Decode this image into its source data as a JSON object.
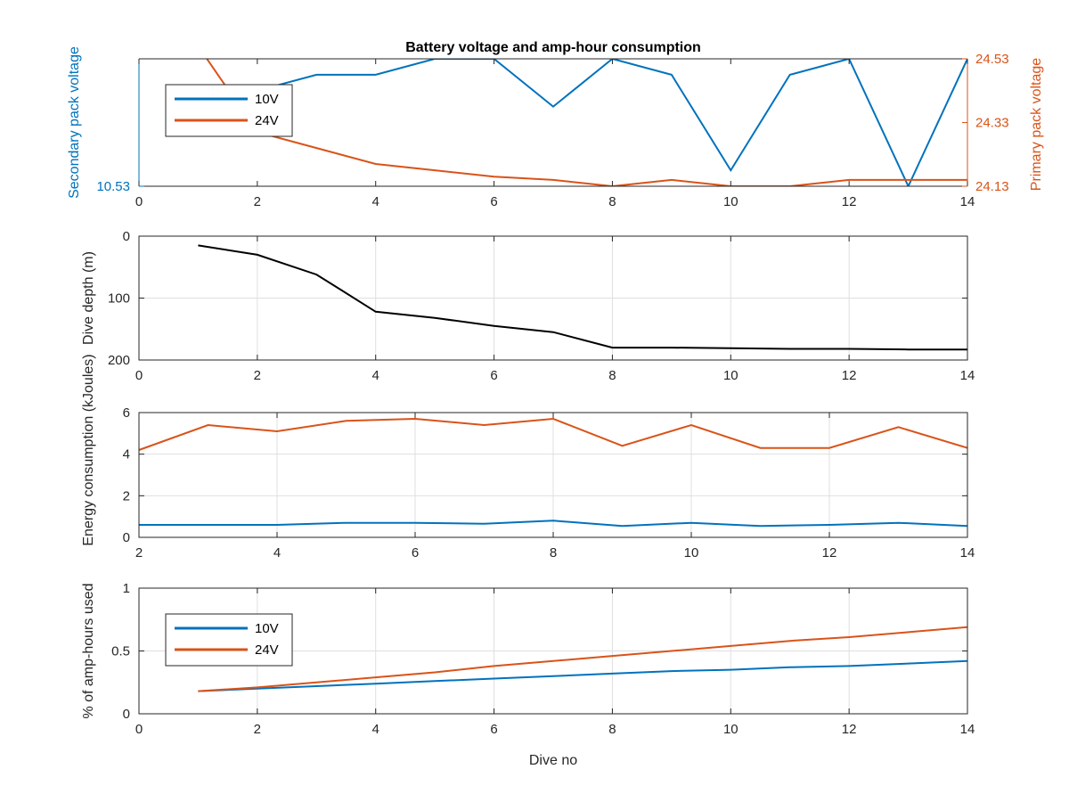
{
  "figure": {
    "title": "Battery voltage and amp-hour consumption"
  },
  "colors": {
    "blue": "#0072BD",
    "orange": "#D95319",
    "black": "#000000",
    "grid": "#dfdfdf",
    "axis": "#262626"
  },
  "chart_data": [
    {
      "id": "voltage",
      "type": "line",
      "title": "Battery voltage and amp-hour consumption",
      "xlabel": "",
      "ylabel_left": "Secondary pack voltage",
      "ylabel_right": "Primary pack voltage",
      "xlim": [
        0,
        14
      ],
      "xticks": [
        0,
        2,
        4,
        6,
        8,
        10,
        12,
        14
      ],
      "ylim_left": [
        10.53,
        10.61
      ],
      "yticks_left": [
        10.53
      ],
      "ylim_right": [
        24.13,
        24.53
      ],
      "yticks_right": [
        24.13,
        24.33,
        24.53
      ],
      "grid": false,
      "legend": "top-left",
      "series": [
        {
          "name": "10V",
          "axis": "left",
          "color": "#0072BD",
          "x": [
            1,
            2,
            3,
            4,
            5,
            6,
            7,
            8,
            9,
            10,
            11,
            12,
            13,
            14
          ],
          "values": [
            10.58,
            10.59,
            10.6,
            10.6,
            10.61,
            10.61,
            10.58,
            10.61,
            10.6,
            10.54,
            10.6,
            10.61,
            10.53,
            10.61
          ]
        },
        {
          "name": "24V",
          "axis": "right",
          "color": "#D95319",
          "x": [
            1,
            2,
            3,
            4,
            5,
            6,
            7,
            8,
            9,
            10,
            11,
            12,
            13,
            14
          ],
          "values": [
            24.57,
            24.3,
            24.25,
            24.2,
            24.18,
            24.16,
            24.15,
            24.13,
            24.15,
            24.13,
            24.13,
            24.15,
            24.15,
            24.15
          ]
        }
      ]
    },
    {
      "id": "depth",
      "type": "line",
      "xlabel": "",
      "ylabel": "Dive depth (m)",
      "xlim": [
        0,
        14
      ],
      "xticks": [
        0,
        2,
        4,
        6,
        8,
        10,
        12,
        14
      ],
      "ylim": [
        0,
        200
      ],
      "yticks": [
        0,
        100,
        200
      ],
      "y_reversed": true,
      "grid": true,
      "series": [
        {
          "color": "#000000",
          "x": [
            1,
            2,
            3,
            4,
            5,
            6,
            7,
            8,
            9,
            10,
            11,
            12,
            13,
            14
          ],
          "values": [
            15,
            30,
            62,
            122,
            132,
            145,
            155,
            180,
            180,
            181,
            182,
            182,
            183,
            183
          ]
        }
      ]
    },
    {
      "id": "energy",
      "type": "line",
      "xlabel": "",
      "ylabel": "Energy consumption (kJoules)",
      "xlim": [
        2,
        14
      ],
      "xticks": [
        2,
        4,
        6,
        8,
        10,
        12,
        14
      ],
      "ylim": [
        0,
        6
      ],
      "yticks": [
        0,
        2,
        4,
        6
      ],
      "grid": true,
      "series": [
        {
          "color": "#0072BD",
          "x": [
            2,
            3,
            4,
            5,
            6,
            7,
            8,
            9,
            10,
            11,
            12,
            13,
            14
          ],
          "values": [
            0.6,
            0.6,
            0.6,
            0.7,
            0.7,
            0.65,
            0.8,
            0.55,
            0.7,
            0.55,
            0.6,
            0.7,
            0.55
          ]
        },
        {
          "color": "#D95319",
          "x": [
            2,
            3,
            4,
            5,
            6,
            7,
            8,
            9,
            10,
            11,
            12,
            13,
            14
          ],
          "values": [
            4.2,
            5.4,
            5.1,
            5.6,
            5.7,
            5.4,
            5.7,
            4.4,
            5.4,
            4.3,
            4.3,
            5.3,
            4.3
          ]
        }
      ]
    },
    {
      "id": "amphours",
      "type": "line",
      "xlabel": "Dive no",
      "ylabel": "% of amp-hours used",
      "xlim": [
        0,
        14
      ],
      "xticks": [
        0,
        2,
        4,
        6,
        8,
        10,
        12,
        14
      ],
      "ylim": [
        0,
        1
      ],
      "yticks": [
        0,
        0.5,
        1
      ],
      "grid": true,
      "legend": "top-left",
      "series": [
        {
          "name": "10V",
          "color": "#0072BD",
          "x": [
            1,
            2,
            3,
            4,
            5,
            6,
            7,
            8,
            9,
            10,
            11,
            12,
            13,
            14
          ],
          "values": [
            0.18,
            0.2,
            0.22,
            0.24,
            0.26,
            0.28,
            0.3,
            0.32,
            0.34,
            0.35,
            0.37,
            0.38,
            0.4,
            0.42
          ]
        },
        {
          "name": "24V",
          "color": "#D95319",
          "x": [
            1,
            2,
            3,
            4,
            5,
            6,
            7,
            8,
            9,
            10,
            11,
            12,
            13,
            14
          ],
          "values": [
            0.18,
            0.21,
            0.25,
            0.29,
            0.33,
            0.38,
            0.42,
            0.46,
            0.5,
            0.54,
            0.58,
            0.61,
            0.65,
            0.69
          ]
        }
      ]
    }
  ]
}
